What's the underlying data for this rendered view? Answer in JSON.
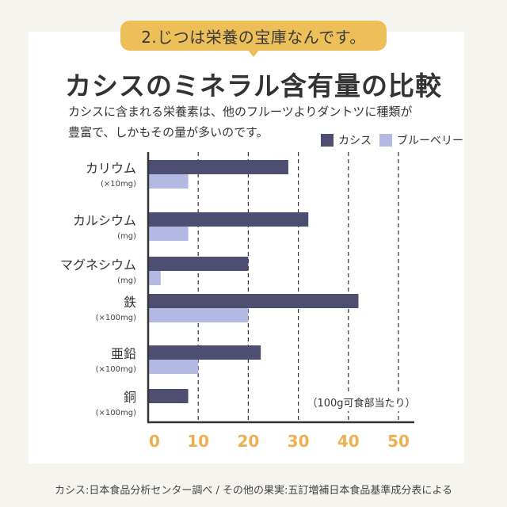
{
  "badge": "2.じつは栄養の宝庫なんです。",
  "title": "カシスのミネラル含有量の比較",
  "description": [
    "カシスに含まれる栄養素は、他のフルーツよりダントツに種類が",
    "豊富で、しかもその量が多いのです。"
  ],
  "footer": "カシス:日本食品分析センター調べ / その他の果実:五訂増補日本食品基準成分表による",
  "colors": {
    "cassis": "#4e4d72",
    "blueberry": "#b3b9e2",
    "tick": "#ecb052",
    "badge": "#ecbf58"
  },
  "chart_data": {
    "type": "bar",
    "orientation": "horizontal",
    "title": "カシスのミネラル含有量の比較",
    "categories": [
      "カリウム",
      "カルシウム",
      "マグネシウム",
      "鉄",
      "亜鉛",
      "銅"
    ],
    "units": [
      "(×10mg)",
      "(mg)",
      "(mg)",
      "(×100mg)",
      "(×100mg)",
      "(×100mg)"
    ],
    "series": [
      {
        "name": "カシス",
        "values": [
          28,
          32,
          20,
          42,
          22.5,
          8
        ]
      },
      {
        "name": "ブルーベリー",
        "values": [
          8,
          8,
          2.5,
          20,
          10,
          0
        ]
      }
    ],
    "xlim": [
      0,
      50
    ],
    "xticks": [
      0,
      10,
      20,
      30,
      40,
      50
    ],
    "grid": "vertical dashed",
    "legend": "top-right",
    "annotation": "（100g可食部当たり）"
  }
}
